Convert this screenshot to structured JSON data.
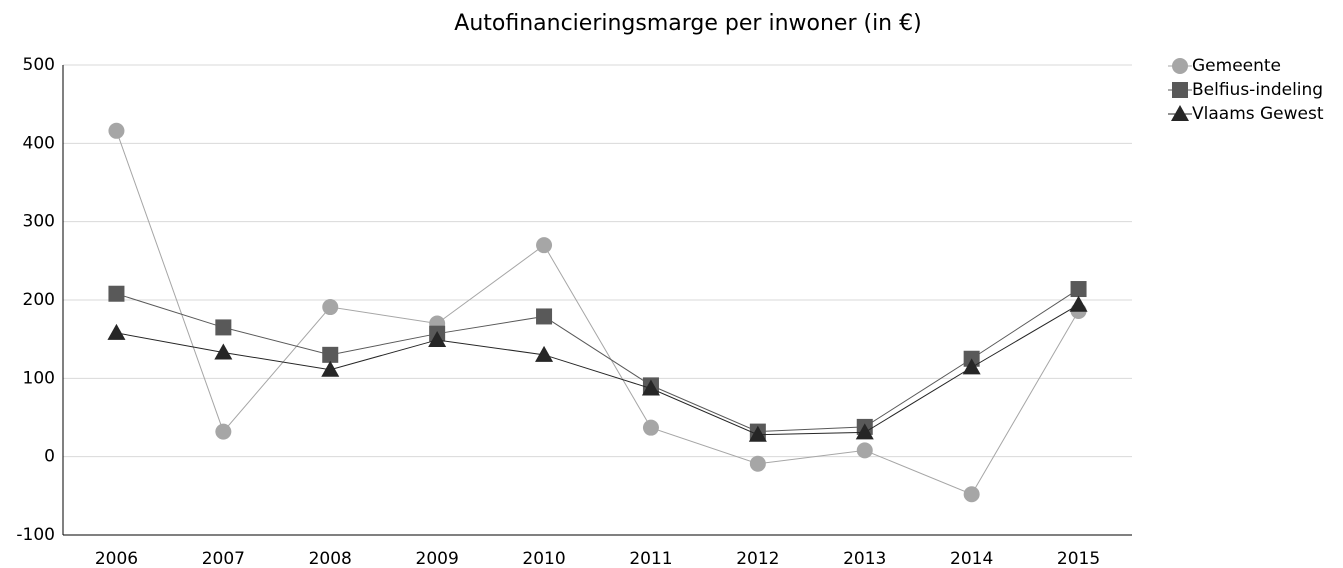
{
  "chart_data": {
    "type": "line",
    "title": "Autofinancieringsmarge per inwoner (in €)",
    "categories": [
      "2006",
      "2007",
      "2008",
      "2009",
      "2010",
      "2011",
      "2012",
      "2013",
      "2014",
      "2015"
    ],
    "series": [
      {
        "name": "Gemeente",
        "color": "#a6a6a6",
        "marker": "circle",
        "values": [
          416,
          32,
          191,
          170,
          270,
          37,
          -9,
          8,
          -48,
          186
        ]
      },
      {
        "name": "Belfius-indeling",
        "color": "#595959",
        "marker": "square",
        "values": [
          208,
          165,
          130,
          157,
          179,
          91,
          32,
          38,
          125,
          214
        ]
      },
      {
        "name": "Vlaams Gewest",
        "color": "#262626",
        "marker": "triangle",
        "values": [
          158,
          133,
          111,
          149,
          130,
          87,
          28,
          31,
          114,
          194
        ]
      }
    ],
    "ylim": [
      -100,
      500
    ],
    "yticks": [
      -100,
      0,
      100,
      200,
      300,
      400,
      500
    ],
    "grid": true,
    "legend": "right"
  }
}
